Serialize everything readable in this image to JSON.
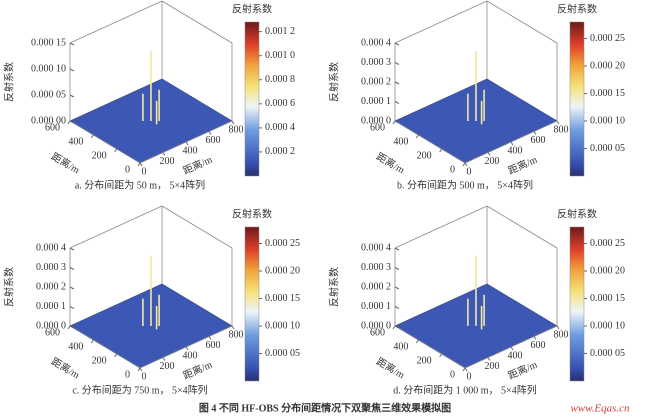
{
  "chart_data": [
    {
      "type": "surface3d",
      "caption": "a. 分布间距为 50 m，  5×4阵列",
      "zlabel": "反射系数",
      "xlabel": "距离/m",
      "ylabel": "距离/m",
      "colorbar_title": "反射系数",
      "xlim": [
        0,
        800
      ],
      "xticks": [
        0,
        200,
        400,
        600,
        800
      ],
      "ylim": [
        0,
        600
      ],
      "yticks": [
        0,
        200,
        400,
        600
      ],
      "zlim": [
        0,
        0.00015
      ],
      "zticks": [
        {
          "value": 0,
          "label": "0.000 00"
        },
        {
          "value": 5e-05,
          "label": "0.000 05"
        },
        {
          "value": 0.0001,
          "label": "0.000 10"
        },
        {
          "value": 0.00015,
          "label": "0.000 15"
        }
      ],
      "clim": [
        0,
        0.00128
      ],
      "cticks": [
        {
          "value": 0.0002,
          "label": "0.000 2"
        },
        {
          "value": 0.0004,
          "label": "0.000 4"
        },
        {
          "value": 0.0006,
          "label": "0.000 6"
        },
        {
          "value": 0.0008,
          "label": "0.000 8"
        },
        {
          "value": 0.001,
          "label": "0.001 0"
        },
        {
          "value": 0.0012,
          "label": "0.001 2"
        }
      ]
    },
    {
      "type": "surface3d",
      "caption": "b. 分布间距为 500 m，  5×4阵列",
      "zlabel": "反射系数",
      "xlabel": "距离/m",
      "ylabel": "距离/m",
      "colorbar_title": "反射系数",
      "xlim": [
        0,
        800
      ],
      "xticks": [
        0,
        200,
        400,
        600,
        800
      ],
      "ylim": [
        0,
        600
      ],
      "yticks": [
        0,
        200,
        400,
        600
      ],
      "zlim": [
        0,
        0.0004
      ],
      "zticks": [
        {
          "value": 0,
          "label": "0.000 0"
        },
        {
          "value": 0.0001,
          "label": "0.000 1"
        },
        {
          "value": 0.0002,
          "label": "0.000 2"
        },
        {
          "value": 0.0003,
          "label": "0.000 3"
        },
        {
          "value": 0.0004,
          "label": "0.000 4"
        }
      ],
      "clim": [
        0,
        0.00028
      ],
      "cticks": [
        {
          "value": 5e-05,
          "label": "0.000 05"
        },
        {
          "value": 0.0001,
          "label": "0.000 10"
        },
        {
          "value": 0.00015,
          "label": "0.000 15"
        },
        {
          "value": 0.0002,
          "label": "0.000 20"
        },
        {
          "value": 0.00025,
          "label": "0.000 25"
        }
      ]
    },
    {
      "type": "surface3d",
      "caption": "c. 分布间距为 750 m，  5×4阵列",
      "zlabel": "反射系数",
      "xlabel": "距离/m",
      "ylabel": "距离/m",
      "colorbar_title": "反射系数",
      "xlim": [
        0,
        800
      ],
      "xticks": [
        0,
        200,
        400,
        600,
        800
      ],
      "ylim": [
        0,
        600
      ],
      "yticks": [
        0,
        200,
        400,
        600
      ],
      "zlim": [
        0,
        0.0004
      ],
      "zticks": [
        {
          "value": 0,
          "label": "0.000 0"
        },
        {
          "value": 0.0001,
          "label": "0.000 1"
        },
        {
          "value": 0.0002,
          "label": "0.000 2"
        },
        {
          "value": 0.0003,
          "label": "0.000 3"
        },
        {
          "value": 0.0004,
          "label": "0.000 4"
        }
      ],
      "clim": [
        0,
        0.00028
      ],
      "cticks": [
        {
          "value": 5e-05,
          "label": "0.000 05"
        },
        {
          "value": 0.0001,
          "label": "0.000 10"
        },
        {
          "value": 0.00015,
          "label": "0.000 15"
        },
        {
          "value": 0.0002,
          "label": "0.000 20"
        },
        {
          "value": 0.00025,
          "label": "0.000 25"
        }
      ]
    },
    {
      "type": "surface3d",
      "caption": "d. 分布间距为 1 000 m，  5×4阵列",
      "zlabel": "反射系数",
      "xlabel": "距离/m",
      "ylabel": "距离/m",
      "colorbar_title": "反射系数",
      "xlim": [
        0,
        800
      ],
      "xticks": [
        0,
        200,
        400,
        600,
        800
      ],
      "ylim": [
        0,
        600
      ],
      "yticks": [
        0,
        200,
        400,
        600
      ],
      "zlim": [
        0,
        0.0004
      ],
      "zticks": [
        {
          "value": 0,
          "label": "0.000 0"
        },
        {
          "value": 0.0001,
          "label": "0.000 1"
        },
        {
          "value": 0.0002,
          "label": "0.000 2"
        },
        {
          "value": 0.0003,
          "label": "0.000 3"
        },
        {
          "value": 0.0004,
          "label": "0.000 4"
        }
      ],
      "clim": [
        0,
        0.00028
      ],
      "cticks": [
        {
          "value": 5e-05,
          "label": "0.000 05"
        },
        {
          "value": 0.0001,
          "label": "0.000 10"
        },
        {
          "value": 0.00015,
          "label": "0.000 15"
        },
        {
          "value": 0.0002,
          "label": "0.000 20"
        },
        {
          "value": 0.00025,
          "label": "0.000 25"
        }
      ]
    }
  ],
  "figure_caption": "图 4   不同 HF-OBS 分布间距情况下双聚焦三维效果模拟图",
  "watermark": "www.Eqas.cn"
}
